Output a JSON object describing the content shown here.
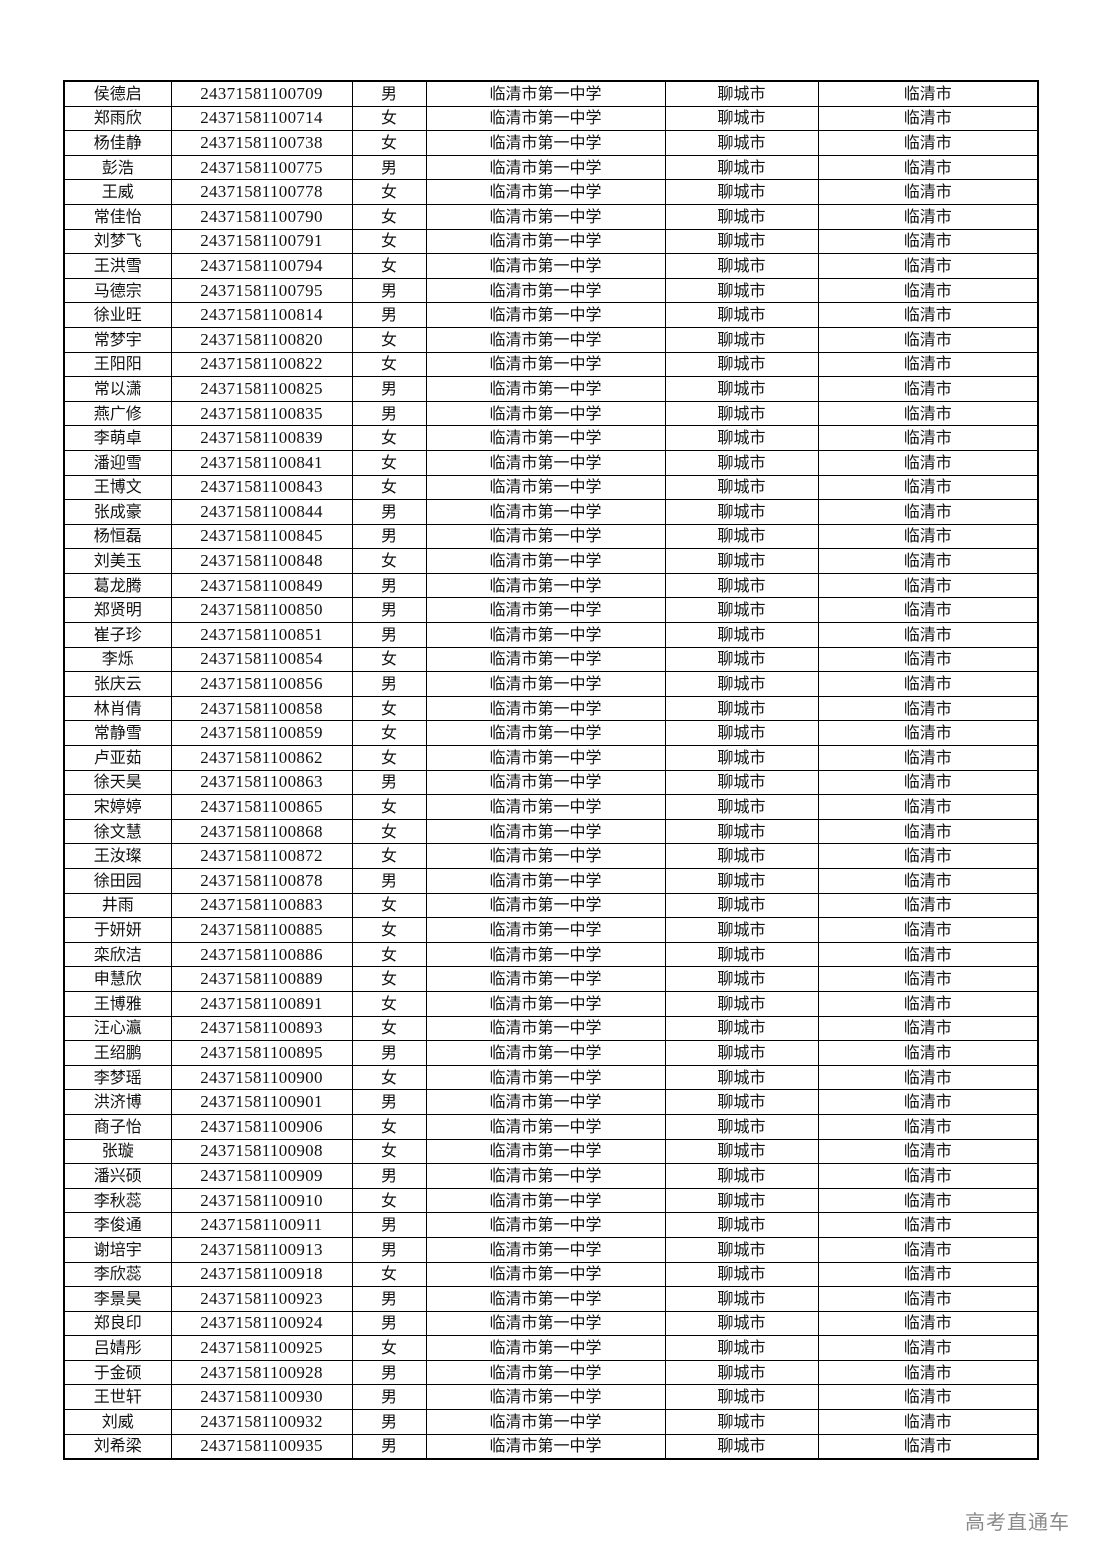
{
  "table": {
    "rows": [
      [
        "侯德启",
        "24371581100709",
        "男",
        "临清市第一中学",
        "聊城市",
        "临清市"
      ],
      [
        "郑雨欣",
        "24371581100714",
        "女",
        "临清市第一中学",
        "聊城市",
        "临清市"
      ],
      [
        "杨佳静",
        "24371581100738",
        "女",
        "临清市第一中学",
        "聊城市",
        "临清市"
      ],
      [
        "彭浩",
        "24371581100775",
        "男",
        "临清市第一中学",
        "聊城市",
        "临清市"
      ],
      [
        "王威",
        "24371581100778",
        "女",
        "临清市第一中学",
        "聊城市",
        "临清市"
      ],
      [
        "常佳怡",
        "24371581100790",
        "女",
        "临清市第一中学",
        "聊城市",
        "临清市"
      ],
      [
        "刘梦飞",
        "24371581100791",
        "女",
        "临清市第一中学",
        "聊城市",
        "临清市"
      ],
      [
        "王洪雪",
        "24371581100794",
        "女",
        "临清市第一中学",
        "聊城市",
        "临清市"
      ],
      [
        "马德宗",
        "24371581100795",
        "男",
        "临清市第一中学",
        "聊城市",
        "临清市"
      ],
      [
        "徐业旺",
        "24371581100814",
        "男",
        "临清市第一中学",
        "聊城市",
        "临清市"
      ],
      [
        "常梦宇",
        "24371581100820",
        "女",
        "临清市第一中学",
        "聊城市",
        "临清市"
      ],
      [
        "王阳阳",
        "24371581100822",
        "女",
        "临清市第一中学",
        "聊城市",
        "临清市"
      ],
      [
        "常以潇",
        "24371581100825",
        "男",
        "临清市第一中学",
        "聊城市",
        "临清市"
      ],
      [
        "燕广修",
        "24371581100835",
        "男",
        "临清市第一中学",
        "聊城市",
        "临清市"
      ],
      [
        "李萌卓",
        "24371581100839",
        "女",
        "临清市第一中学",
        "聊城市",
        "临清市"
      ],
      [
        "潘迎雪",
        "24371581100841",
        "女",
        "临清市第一中学",
        "聊城市",
        "临清市"
      ],
      [
        "王博文",
        "24371581100843",
        "女",
        "临清市第一中学",
        "聊城市",
        "临清市"
      ],
      [
        "张成豪",
        "24371581100844",
        "男",
        "临清市第一中学",
        "聊城市",
        "临清市"
      ],
      [
        "杨恒磊",
        "24371581100845",
        "男",
        "临清市第一中学",
        "聊城市",
        "临清市"
      ],
      [
        "刘美玉",
        "24371581100848",
        "女",
        "临清市第一中学",
        "聊城市",
        "临清市"
      ],
      [
        "葛龙腾",
        "24371581100849",
        "男",
        "临清市第一中学",
        "聊城市",
        "临清市"
      ],
      [
        "郑贤明",
        "24371581100850",
        "男",
        "临清市第一中学",
        "聊城市",
        "临清市"
      ],
      [
        "崔子珍",
        "24371581100851",
        "男",
        "临清市第一中学",
        "聊城市",
        "临清市"
      ],
      [
        "李烁",
        "24371581100854",
        "女",
        "临清市第一中学",
        "聊城市",
        "临清市"
      ],
      [
        "张庆云",
        "24371581100856",
        "男",
        "临清市第一中学",
        "聊城市",
        "临清市"
      ],
      [
        "林肖倩",
        "24371581100858",
        "女",
        "临清市第一中学",
        "聊城市",
        "临清市"
      ],
      [
        "常静雪",
        "24371581100859",
        "女",
        "临清市第一中学",
        "聊城市",
        "临清市"
      ],
      [
        "卢亚茹",
        "24371581100862",
        "女",
        "临清市第一中学",
        "聊城市",
        "临清市"
      ],
      [
        "徐天昊",
        "24371581100863",
        "男",
        "临清市第一中学",
        "聊城市",
        "临清市"
      ],
      [
        "宋婷婷",
        "24371581100865",
        "女",
        "临清市第一中学",
        "聊城市",
        "临清市"
      ],
      [
        "徐文慧",
        "24371581100868",
        "女",
        "临清市第一中学",
        "聊城市",
        "临清市"
      ],
      [
        "王汝璨",
        "24371581100872",
        "女",
        "临清市第一中学",
        "聊城市",
        "临清市"
      ],
      [
        "徐田园",
        "24371581100878",
        "男",
        "临清市第一中学",
        "聊城市",
        "临清市"
      ],
      [
        "井雨",
        "24371581100883",
        "女",
        "临清市第一中学",
        "聊城市",
        "临清市"
      ],
      [
        "于妍妍",
        "24371581100885",
        "女",
        "临清市第一中学",
        "聊城市",
        "临清市"
      ],
      [
        "栾欣洁",
        "24371581100886",
        "女",
        "临清市第一中学",
        "聊城市",
        "临清市"
      ],
      [
        "申慧欣",
        "24371581100889",
        "女",
        "临清市第一中学",
        "聊城市",
        "临清市"
      ],
      [
        "王博雅",
        "24371581100891",
        "女",
        "临清市第一中学",
        "聊城市",
        "临清市"
      ],
      [
        "汪心瀛",
        "24371581100893",
        "女",
        "临清市第一中学",
        "聊城市",
        "临清市"
      ],
      [
        "王绍鹏",
        "24371581100895",
        "男",
        "临清市第一中学",
        "聊城市",
        "临清市"
      ],
      [
        "李梦瑶",
        "24371581100900",
        "女",
        "临清市第一中学",
        "聊城市",
        "临清市"
      ],
      [
        "洪济博",
        "24371581100901",
        "男",
        "临清市第一中学",
        "聊城市",
        "临清市"
      ],
      [
        "商子怡",
        "24371581100906",
        "女",
        "临清市第一中学",
        "聊城市",
        "临清市"
      ],
      [
        "张璇",
        "24371581100908",
        "女",
        "临清市第一中学",
        "聊城市",
        "临清市"
      ],
      [
        "潘兴硕",
        "24371581100909",
        "男",
        "临清市第一中学",
        "聊城市",
        "临清市"
      ],
      [
        "李秋蕊",
        "24371581100910",
        "女",
        "临清市第一中学",
        "聊城市",
        "临清市"
      ],
      [
        "李俊通",
        "24371581100911",
        "男",
        "临清市第一中学",
        "聊城市",
        "临清市"
      ],
      [
        "谢培宇",
        "24371581100913",
        "男",
        "临清市第一中学",
        "聊城市",
        "临清市"
      ],
      [
        "李欣蕊",
        "24371581100918",
        "女",
        "临清市第一中学",
        "聊城市",
        "临清市"
      ],
      [
        "李景昊",
        "24371581100923",
        "男",
        "临清市第一中学",
        "聊城市",
        "临清市"
      ],
      [
        "郑良印",
        "24371581100924",
        "男",
        "临清市第一中学",
        "聊城市",
        "临清市"
      ],
      [
        "吕婧彤",
        "24371581100925",
        "女",
        "临清市第一中学",
        "聊城市",
        "临清市"
      ],
      [
        "于金硕",
        "24371581100928",
        "男",
        "临清市第一中学",
        "聊城市",
        "临清市"
      ],
      [
        "王世轩",
        "24371581100930",
        "男",
        "临清市第一中学",
        "聊城市",
        "临清市"
      ],
      [
        "刘威",
        "24371581100932",
        "男",
        "临清市第一中学",
        "聊城市",
        "临清市"
      ],
      [
        "刘希梁",
        "24371581100935",
        "男",
        "临清市第一中学",
        "聊城市",
        "临清市"
      ]
    ]
  },
  "watermark": "高考直通车"
}
